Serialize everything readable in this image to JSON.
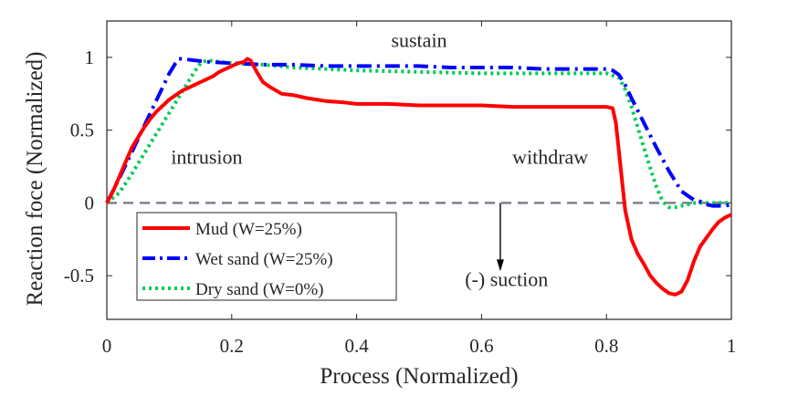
{
  "chart_data": {
    "type": "line",
    "title": "",
    "xlabel": "Process (Normalized)",
    "ylabel": "Reaction foce (Normalized)",
    "xlim": [
      0,
      1
    ],
    "ylim": [
      -0.8,
      1.25
    ],
    "grid": false,
    "legend_position": "bottom-left",
    "x_ticks": [
      {
        "value": 0,
        "label": "0"
      },
      {
        "value": 0.2,
        "label": "0.2"
      },
      {
        "value": 0.4,
        "label": "0.4"
      },
      {
        "value": 0.6,
        "label": "0.6"
      },
      {
        "value": 0.8,
        "label": "0.8"
      },
      {
        "value": 1,
        "label": "1"
      }
    ],
    "y_ticks": [
      {
        "value": -0.5,
        "label": "-0.5"
      },
      {
        "value": 0,
        "label": "0"
      },
      {
        "value": 0.5,
        "label": "0.5"
      },
      {
        "value": 1,
        "label": "1"
      }
    ],
    "series": [
      {
        "name": "Mud (W=25%)",
        "color": "#ff0000",
        "dash": "solid",
        "x": [
          0,
          0.01,
          0.02,
          0.03,
          0.04,
          0.05,
          0.06,
          0.07,
          0.08,
          0.09,
          0.1,
          0.11,
          0.12,
          0.13,
          0.14,
          0.15,
          0.16,
          0.17,
          0.18,
          0.19,
          0.2,
          0.21,
          0.22,
          0.225,
          0.23,
          0.24,
          0.25,
          0.26,
          0.28,
          0.3,
          0.32,
          0.35,
          0.38,
          0.4,
          0.45,
          0.5,
          0.55,
          0.6,
          0.65,
          0.7,
          0.75,
          0.8,
          0.81,
          0.815,
          0.82,
          0.825,
          0.83,
          0.835,
          0.84,
          0.85,
          0.86,
          0.87,
          0.88,
          0.89,
          0.9,
          0.91,
          0.92,
          0.93,
          0.94,
          0.95,
          0.96,
          0.97,
          0.98,
          0.99,
          1.0
        ],
        "y": [
          0,
          0.08,
          0.18,
          0.28,
          0.38,
          0.45,
          0.52,
          0.58,
          0.63,
          0.67,
          0.71,
          0.74,
          0.77,
          0.79,
          0.81,
          0.83,
          0.85,
          0.87,
          0.9,
          0.92,
          0.94,
          0.96,
          0.97,
          0.99,
          0.98,
          0.9,
          0.83,
          0.8,
          0.75,
          0.74,
          0.72,
          0.7,
          0.69,
          0.68,
          0.68,
          0.67,
          0.67,
          0.67,
          0.66,
          0.66,
          0.66,
          0.66,
          0.65,
          0.55,
          0.35,
          0.15,
          -0.05,
          -0.15,
          -0.25,
          -0.35,
          -0.42,
          -0.5,
          -0.55,
          -0.59,
          -0.62,
          -0.63,
          -0.61,
          -0.53,
          -0.4,
          -0.3,
          -0.24,
          -0.18,
          -0.13,
          -0.1,
          -0.08
        ]
      },
      {
        "name": "Wet sand (W=25%)",
        "color": "#0000ff",
        "dash": "dashdot",
        "x": [
          0,
          0.02,
          0.04,
          0.06,
          0.08,
          0.1,
          0.11,
          0.115,
          0.12,
          0.14,
          0.16,
          0.2,
          0.25,
          0.3,
          0.35,
          0.4,
          0.45,
          0.5,
          0.55,
          0.6,
          0.65,
          0.7,
          0.75,
          0.8,
          0.81,
          0.82,
          0.83,
          0.84,
          0.86,
          0.88,
          0.9,
          0.92,
          0.94,
          0.95,
          0.96,
          0.97,
          0.98,
          0.99,
          1.0
        ],
        "y": [
          0,
          0.17,
          0.35,
          0.53,
          0.71,
          0.89,
          0.96,
          0.99,
          0.99,
          0.98,
          0.97,
          0.96,
          0.95,
          0.95,
          0.94,
          0.94,
          0.94,
          0.94,
          0.93,
          0.93,
          0.93,
          0.92,
          0.92,
          0.92,
          0.91,
          0.88,
          0.81,
          0.72,
          0.55,
          0.38,
          0.22,
          0.08,
          0.02,
          0.01,
          -0.01,
          -0.02,
          -0.02,
          -0.02,
          -0.01
        ]
      },
      {
        "name": "Dry sand (W=0%)",
        "color": "#00cc55",
        "dash": "dotted",
        "x": [
          0,
          0.02,
          0.04,
          0.06,
          0.08,
          0.1,
          0.12,
          0.14,
          0.15,
          0.16,
          0.18,
          0.2,
          0.25,
          0.3,
          0.4,
          0.5,
          0.6,
          0.7,
          0.8,
          0.82,
          0.83,
          0.84,
          0.85,
          0.86,
          0.87,
          0.88,
          0.89,
          0.9,
          0.91,
          0.92,
          0.93,
          0.94,
          0.96,
          0.98,
          1.0
        ],
        "y": [
          0,
          0.07,
          0.2,
          0.34,
          0.48,
          0.62,
          0.76,
          0.9,
          0.96,
          0.98,
          0.97,
          0.96,
          0.95,
          0.93,
          0.91,
          0.9,
          0.89,
          0.89,
          0.89,
          0.86,
          0.78,
          0.66,
          0.52,
          0.38,
          0.24,
          0.11,
          0.01,
          -0.03,
          -0.03,
          -0.02,
          -0.01,
          0.0,
          0.0,
          0.0,
          0.0
        ]
      },
      {
        "name": "zero-reference",
        "color": "#7f7f8f",
        "dash": "dashed",
        "in_legend": false,
        "x": [
          0,
          1
        ],
        "y": [
          0,
          0
        ]
      }
    ],
    "annotations": [
      {
        "text": "sustain",
        "x": 0.5,
        "y": 1.07
      },
      {
        "text": "intrusion",
        "x": 0.16,
        "y": 0.27
      },
      {
        "text": "withdraw",
        "x": 0.71,
        "y": 0.27
      },
      {
        "text": "(-) suction",
        "x": 0.64,
        "y": -0.57
      }
    ],
    "arrow": {
      "x": 0.63,
      "y_from": 0.0,
      "y_to": -0.47,
      "color": "#000000"
    }
  }
}
